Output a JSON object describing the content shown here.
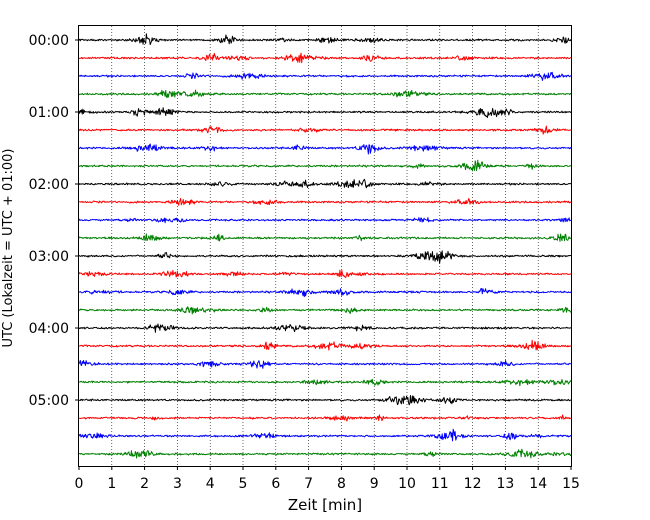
{
  "chart_data": {
    "type": "line",
    "subtype": "helicorder",
    "xlabel": "Zeit  [min]",
    "ylabel": "UTC (Lokalzeit = UTC + 01:00)",
    "xlim": [
      0,
      15
    ],
    "x_ticks": [
      "0",
      "1",
      "2",
      "3",
      "4",
      "5",
      "6",
      "7",
      "8",
      "9",
      "10",
      "11",
      "12",
      "13",
      "14",
      "15"
    ],
    "vertical_gridlines": "dotted, at every minute",
    "y_ticks": [
      "00:00",
      "01:00",
      "02:00",
      "03:00",
      "04:00",
      "05:00"
    ],
    "trace_interval_minutes": 15,
    "trace_count": 24,
    "trace_color_cycle": [
      "#000000",
      "#ff0000",
      "#0000ff",
      "#008000"
    ]
  }
}
